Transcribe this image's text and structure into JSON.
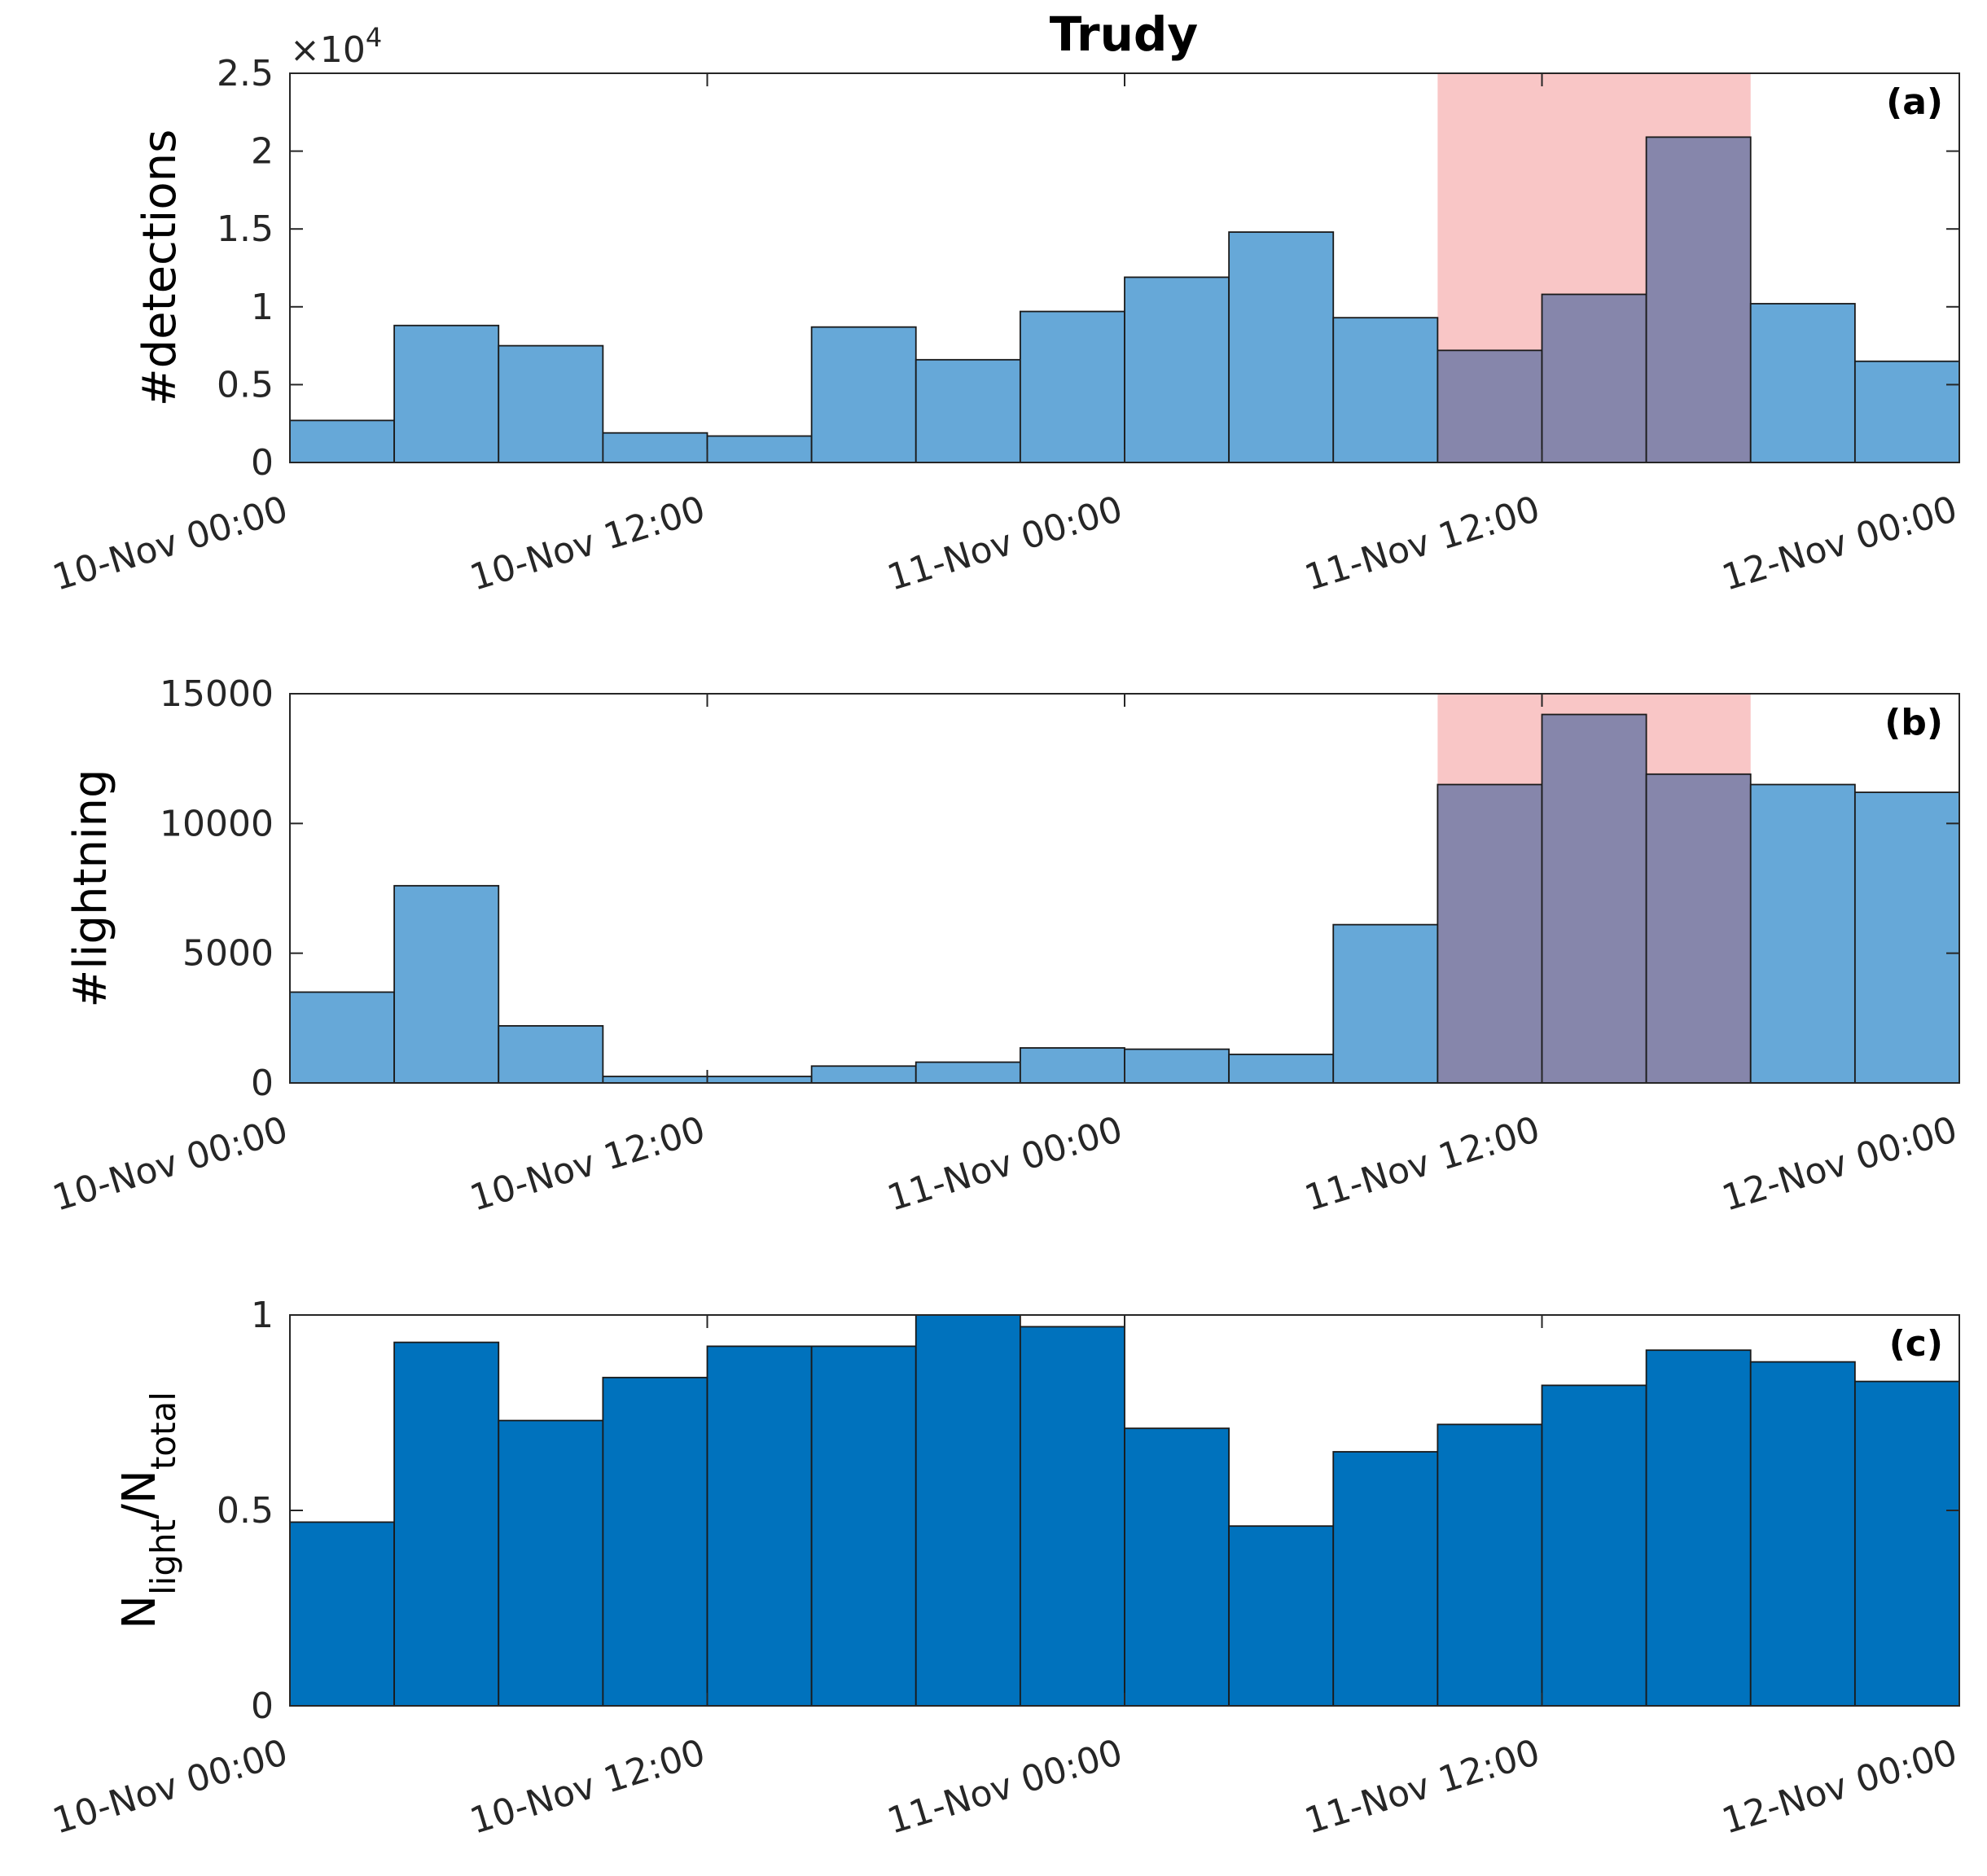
{
  "title": "Trudy",
  "x_tick_labels": [
    "10-Nov 00:00",
    "10-Nov 12:00",
    "11-Nov 00:00",
    "11-Nov 12:00",
    "12-Nov 00:00"
  ],
  "highlight_color": "#f9c6c6",
  "chart_data": [
    {
      "type": "bar",
      "panel": "(a)",
      "ylabel": "#detections",
      "y_multiplier_label": "×10",
      "y_multiplier_exponent": "4",
      "ylim": [
        0,
        25000
      ],
      "y_ticks": [
        0,
        5000,
        10000,
        15000,
        20000,
        25000
      ],
      "y_tick_labels": [
        "0",
        "0.5",
        "1",
        "1.5",
        "2",
        "2.5"
      ],
      "bar_color": "#66a8d8",
      "bin_width_hours": 3,
      "bin_start": "10-Nov 00:00",
      "x": [
        "10-Nov 00:00",
        "10-Nov 03:00",
        "10-Nov 06:00",
        "10-Nov 09:00",
        "10-Nov 12:00",
        "10-Nov 15:00",
        "10-Nov 18:00",
        "10-Nov 21:00",
        "11-Nov 00:00",
        "11-Nov 03:00",
        "11-Nov 06:00",
        "11-Nov 09:00",
        "11-Nov 12:00",
        "11-Nov 15:00",
        "11-Nov 18:00",
        "11-Nov 21:00"
      ],
      "values": [
        2700,
        8800,
        7500,
        1900,
        1700,
        8700,
        6600,
        9700,
        11900,
        14800,
        9300,
        7200,
        10800,
        20900,
        10200,
        6500
      ],
      "highlight": [
        "11-Nov 09:00",
        "11-Nov 15:00"
      ],
      "grid": false
    },
    {
      "type": "bar",
      "panel": "(b)",
      "ylabel": "#lightning",
      "ylim": [
        0,
        15000
      ],
      "y_ticks": [
        0,
        5000,
        10000,
        15000
      ],
      "y_tick_labels": [
        "0",
        "5000",
        "10000",
        "15000"
      ],
      "bar_color": "#66a8d8",
      "bin_width_hours": 3,
      "bin_start": "10-Nov 00:00",
      "x": [
        "10-Nov 00:00",
        "10-Nov 03:00",
        "10-Nov 06:00",
        "10-Nov 09:00",
        "10-Nov 12:00",
        "10-Nov 15:00",
        "10-Nov 18:00",
        "10-Nov 21:00",
        "11-Nov 00:00",
        "11-Nov 03:00",
        "11-Nov 06:00",
        "11-Nov 09:00",
        "11-Nov 12:00",
        "11-Nov 15:00",
        "11-Nov 18:00",
        "11-Nov 21:00"
      ],
      "values": [
        3500,
        7600,
        2200,
        250,
        250,
        650,
        800,
        1350,
        1300,
        1100,
        6100,
        11500,
        14200,
        11900,
        11500,
        11200
      ],
      "highlight": [
        "11-Nov 09:00",
        "11-Nov 15:00"
      ],
      "grid": false
    },
    {
      "type": "bar",
      "panel": "(c)",
      "ylabel_main": "N",
      "ylabel_sub1": "light",
      "ylabel_sep": "/N",
      "ylabel_sub2": "total",
      "ylim": [
        0,
        1
      ],
      "y_ticks": [
        0,
        0.5,
        1
      ],
      "y_tick_labels": [
        "0",
        "0.5",
        "1"
      ],
      "bar_color": "#0072bd",
      "bin_width_hours": 3,
      "bin_start": "10-Nov 00:00",
      "x": [
        "10-Nov 00:00",
        "10-Nov 03:00",
        "10-Nov 06:00",
        "10-Nov 09:00",
        "10-Nov 12:00",
        "10-Nov 15:00",
        "10-Nov 18:00",
        "10-Nov 21:00",
        "11-Nov 00:00",
        "11-Nov 03:00",
        "11-Nov 06:00",
        "11-Nov 09:00",
        "11-Nov 12:00",
        "11-Nov 15:00",
        "11-Nov 18:00",
        "11-Nov 21:00"
      ],
      "values": [
        0.47,
        0.93,
        0.73,
        0.84,
        0.92,
        0.92,
        1.0,
        0.97,
        0.71,
        0.46,
        0.65,
        0.72,
        0.82,
        0.91,
        0.88,
        0.83
      ],
      "grid": false
    }
  ]
}
